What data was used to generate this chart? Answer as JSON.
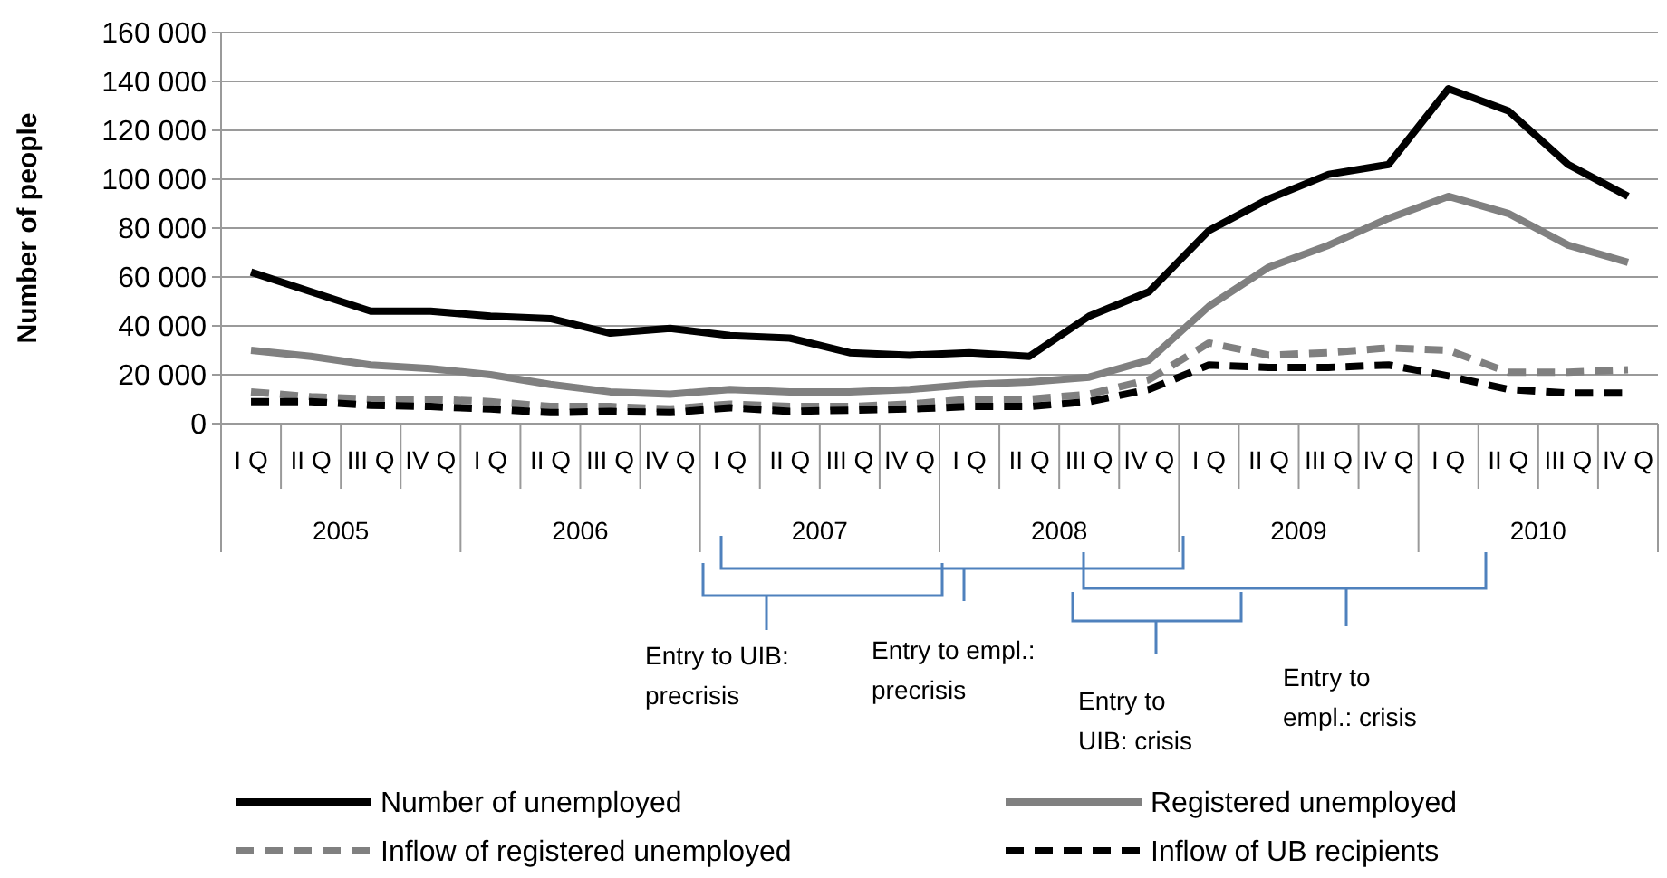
{
  "chart_data": {
    "type": "line",
    "ylabel": "Number of people",
    "categories": [
      "I Q",
      "II Q",
      "III Q",
      "IV Q",
      "I Q",
      "II Q",
      "III Q",
      "IV Q",
      "I Q",
      "II Q",
      "III Q",
      "IV Q",
      "I Q",
      "II Q",
      "III Q",
      "IV Q",
      "I Q",
      "II Q",
      "III Q",
      "IV Q",
      "I Q",
      "II Q",
      "III Q",
      "IV Q"
    ],
    "series": [
      {
        "name": "Number of unemployed",
        "color": "#000000",
        "line_style": "solid",
        "values": [
          62000,
          54000,
          46000,
          46000,
          44000,
          43000,
          37000,
          39000,
          36000,
          35000,
          29000,
          28000,
          29000,
          27500,
          44000,
          54000,
          79000,
          92000,
          102000,
          106000,
          137000,
          128000,
          106000,
          93000
        ]
      },
      {
        "name": "Registered unemployed",
        "color": "#808080",
        "line_style": "solid",
        "values": [
          30000,
          27500,
          24000,
          22500,
          20000,
          16000,
          13000,
          12000,
          14000,
          13000,
          13000,
          14000,
          16000,
          17000,
          19000,
          26000,
          48000,
          64000,
          73000,
          84000,
          93000,
          86000,
          73000,
          66000
        ]
      },
      {
        "name": "Inflow of registered unemployed",
        "color": "#808080",
        "line_style": "dashed",
        "values": [
          13000,
          11000,
          10000,
          10000,
          9000,
          7000,
          7000,
          6000,
          8000,
          7000,
          7000,
          8000,
          10000,
          10000,
          12000,
          18000,
          33000,
          28000,
          29000,
          31000,
          30000,
          21000,
          21000,
          22000
        ]
      },
      {
        "name": "Inflow of UB recipients",
        "color": "#000000",
        "line_style": "dashed",
        "values": [
          9000,
          9000,
          7500,
          7000,
          6000,
          4500,
          5000,
          4500,
          6500,
          5000,
          5500,
          6000,
          7000,
          7000,
          9000,
          14000,
          24000,
          23000,
          23000,
          24000,
          19500,
          14000,
          12500,
          12500
        ]
      }
    ],
    "ylim": [
      0,
      160000
    ],
    "yticks": [
      {
        "value": 0,
        "label": "0"
      },
      {
        "value": 20000,
        "label": "20 000"
      },
      {
        "value": 40000,
        "label": "40 000"
      },
      {
        "value": 60000,
        "label": "60 000"
      },
      {
        "value": 80000,
        "label": "80 000"
      },
      {
        "value": 100000,
        "label": "100 000"
      },
      {
        "value": 120000,
        "label": "120 000"
      },
      {
        "value": 140000,
        "label": "140 000"
      },
      {
        "value": 160000,
        "label": "160 000"
      }
    ],
    "grid": "y",
    "legend": "bottom",
    "marker": "none",
    "annotations": [
      "2005",
      "2006",
      "2007",
      "2008",
      "2009",
      "2010",
      "Entry to UIB: precrisis",
      "Entry to empl.: precrisis",
      "Entry to UIB: crisis",
      "Entry to empl.: crisis"
    ]
  }
}
